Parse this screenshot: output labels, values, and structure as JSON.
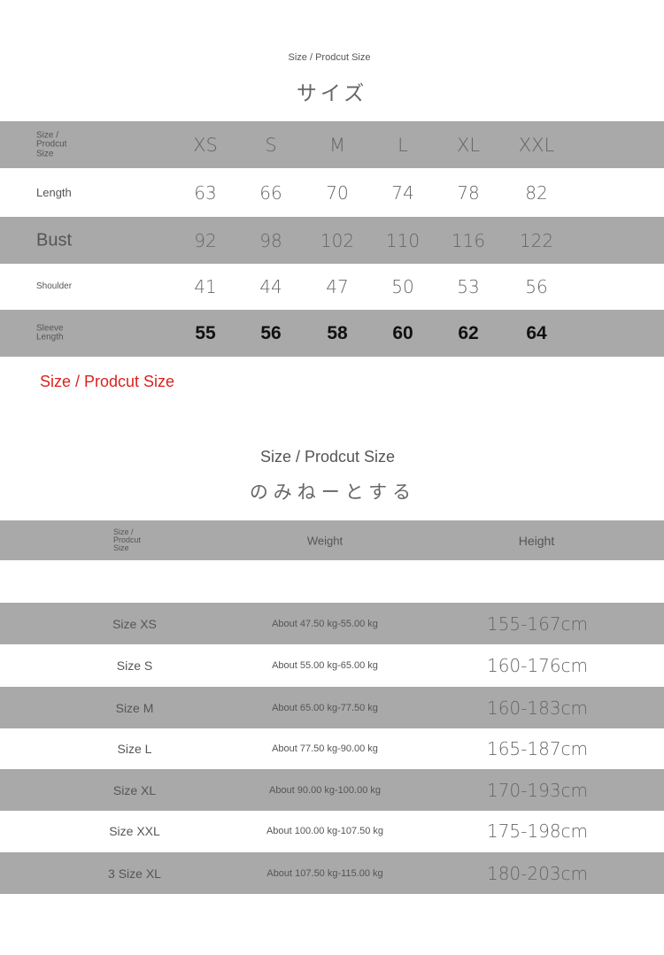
{
  "section1": {
    "subtitle": "Size / Prodcut Size",
    "title": "サイズ",
    "header": {
      "label_lines": [
        "Size /",
        "Prodcut",
        "Size"
      ],
      "sizes": [
        "XS",
        "S",
        "M",
        "L",
        "XL",
        "XXL"
      ]
    },
    "rows": [
      {
        "label": "Length",
        "values": [
          "63",
          "66",
          "70",
          "74",
          "78",
          "82"
        ]
      },
      {
        "label": "Bust",
        "values": [
          "92",
          "98",
          "102",
          "110",
          "116",
          "122"
        ]
      },
      {
        "label": "Shoulder",
        "values": [
          "41",
          "44",
          "47",
          "50",
          "53",
          "56"
        ]
      },
      {
        "label_lines": [
          "Sleeve",
          "Length"
        ],
        "values": [
          "55",
          "56",
          "58",
          "60",
          "62",
          "64"
        ]
      }
    ],
    "note": "Size / Prodcut Size",
    "note_color": "#d9231f"
  },
  "section2": {
    "subtitle": "Size / Prodcut Size",
    "title": "のみねーとする",
    "header": {
      "label_lines": [
        "Size /",
        "Prodcut",
        "Size"
      ],
      "weight": "Weight",
      "height": "Height"
    },
    "rows": [
      {
        "size": "Size XS",
        "weight": "About 47.50 kg-55.00 kg",
        "height": "155-167cm"
      },
      {
        "size": "Size S",
        "weight": "About 55.00 kg-65.00 kg",
        "height": "160-176cm"
      },
      {
        "size": "Size M",
        "weight": "About 65.00 kg-77.50 kg",
        "height": "160-183cm"
      },
      {
        "size": "Size L",
        "weight": "About 77.50 kg-90.00 kg",
        "height": "165-187cm"
      },
      {
        "size": "Size XL",
        "weight": "About 90.00 kg-100.00 kg",
        "height": "170-193cm"
      },
      {
        "size": "Size XXL",
        "weight": "About 100.00 kg-107.50 kg",
        "height": "175-198cm"
      },
      {
        "size": "3 Size XL",
        "weight": "About 107.50 kg-115.00 kg",
        "height": "180-203cm"
      }
    ]
  },
  "colors": {
    "band": "#a9a9a9",
    "text": "#555555"
  }
}
